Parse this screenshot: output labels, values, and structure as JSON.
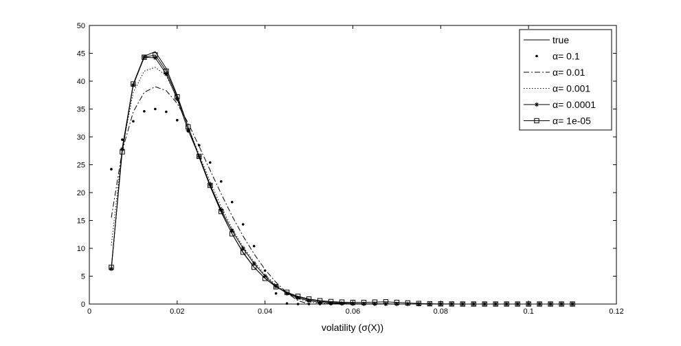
{
  "chart_data": {
    "type": "line",
    "title": "",
    "xlabel": "volatility (σ(X))",
    "ylabel": "",
    "xlim": [
      0,
      0.12
    ],
    "ylim": [
      0,
      50
    ],
    "xticks": [
      0,
      0.02,
      0.04,
      0.06,
      0.08,
      0.1,
      0.12
    ],
    "xtick_labels": [
      "0",
      "0.02",
      "0.04",
      "0.06",
      "0.08",
      "0.1",
      "0.12"
    ],
    "yticks": [
      0,
      5,
      10,
      15,
      20,
      25,
      30,
      35,
      40,
      45,
      50
    ],
    "ytick_labels": [
      "0",
      "5",
      "10",
      "15",
      "20",
      "25",
      "30",
      "35",
      "40",
      "45",
      "50"
    ],
    "grid": false,
    "legend_position": "top-right",
    "x": [
      0.005,
      0.0075,
      0.01,
      0.0125,
      0.015,
      0.0175,
      0.02,
      0.0225,
      0.025,
      0.0275,
      0.03,
      0.0325,
      0.035,
      0.0375,
      0.04,
      0.0425,
      0.045,
      0.0475,
      0.05,
      0.0525,
      0.055,
      0.0575,
      0.06,
      0.0625,
      0.065,
      0.0675,
      0.07,
      0.0725,
      0.075,
      0.0775,
      0.08,
      0.0825,
      0.085,
      0.0875,
      0.09,
      0.0925,
      0.095,
      0.0975,
      0.1,
      0.1025,
      0.105,
      0.1075,
      0.11
    ],
    "series": [
      {
        "name": "true",
        "style": "solid",
        "marker": "none",
        "values": [
          6.2,
          28.0,
          39.5,
          44.5,
          45.3,
          42.3,
          37.5,
          31.8,
          26.3,
          21.1,
          16.5,
          12.6,
          9.2,
          6.6,
          4.6,
          3.1,
          2.0,
          1.3,
          0.8,
          0.5,
          0.3,
          0.2,
          0.1,
          0.05,
          0.03,
          0.02,
          0.01,
          0,
          0,
          0,
          0,
          0,
          0,
          0,
          0,
          0,
          0,
          0,
          0,
          0,
          0,
          0,
          0
        ]
      },
      {
        "name": "α= 0.1",
        "style": "none",
        "marker": "dot",
        "values": [
          24.2,
          29.5,
          32.8,
          34.6,
          35.0,
          34.5,
          33.0,
          31.0,
          28.5,
          25.4,
          22.0,
          18.3,
          14.3,
          10.4,
          6.0,
          1.9,
          0.1,
          0,
          0,
          0,
          0,
          0,
          0,
          0,
          0,
          0,
          0,
          0,
          0,
          0,
          0,
          0,
          0,
          0,
          0,
          0,
          0,
          0,
          0,
          0,
          0,
          0,
          0
        ]
      },
      {
        "name": "α= 0.01",
        "style": "dashdot",
        "marker": "none",
        "values": [
          15.5,
          27.5,
          34.5,
          38.0,
          39.0,
          38.3,
          36.0,
          32.5,
          28.3,
          24.0,
          19.8,
          15.8,
          12.2,
          9.0,
          6.2,
          3.9,
          2.0,
          0.6,
          0,
          0,
          0,
          0,
          0,
          0,
          0,
          0,
          0,
          0,
          0,
          0,
          0,
          0,
          0,
          0,
          0,
          0,
          0,
          0,
          0,
          0,
          0,
          0,
          0
        ]
      },
      {
        "name": "α= 0.001",
        "style": "dotted",
        "marker": "none",
        "values": [
          10.5,
          27.8,
          38.0,
          41.8,
          42.5,
          41.0,
          37.0,
          31.8,
          26.8,
          22.0,
          17.5,
          13.6,
          10.3,
          7.6,
          5.3,
          3.4,
          2.0,
          1.0,
          0.4,
          0.1,
          0,
          0,
          0,
          0,
          0,
          0,
          0,
          0,
          0,
          0,
          0,
          0,
          0,
          0,
          0,
          0,
          0,
          0,
          0,
          0,
          0,
          0,
          0
        ]
      },
      {
        "name": "α= 0.0001",
        "style": "solid",
        "marker": "star",
        "values": [
          6.3,
          27.8,
          39.3,
          44.3,
          44.2,
          41.3,
          36.8,
          31.2,
          26.5,
          21.4,
          16.9,
          13.2,
          10.0,
          7.3,
          5.0,
          3.2,
          1.9,
          1.1,
          0.6,
          0.3,
          0.15,
          0.1,
          0.05,
          0.03,
          0.02,
          0.01,
          0,
          0,
          0,
          0,
          0,
          0,
          0,
          0,
          0,
          0,
          0,
          0,
          0,
          0,
          0,
          0,
          0
        ]
      },
      {
        "name": "α= 1e-05",
        "style": "solid",
        "marker": "square",
        "values": [
          6.6,
          27.3,
          39.5,
          44.3,
          44.7,
          41.8,
          37.2,
          31.8,
          26.5,
          21.3,
          16.6,
          12.6,
          9.3,
          6.6,
          4.6,
          3.1,
          2.1,
          1.4,
          0.9,
          0.6,
          0.45,
          0.35,
          0.3,
          0.3,
          0.35,
          0.4,
          0.3,
          0.2,
          0.1,
          0.05,
          0.03,
          0.01,
          0,
          0,
          0,
          0,
          0,
          0,
          0,
          0,
          0,
          0,
          0
        ]
      }
    ]
  }
}
